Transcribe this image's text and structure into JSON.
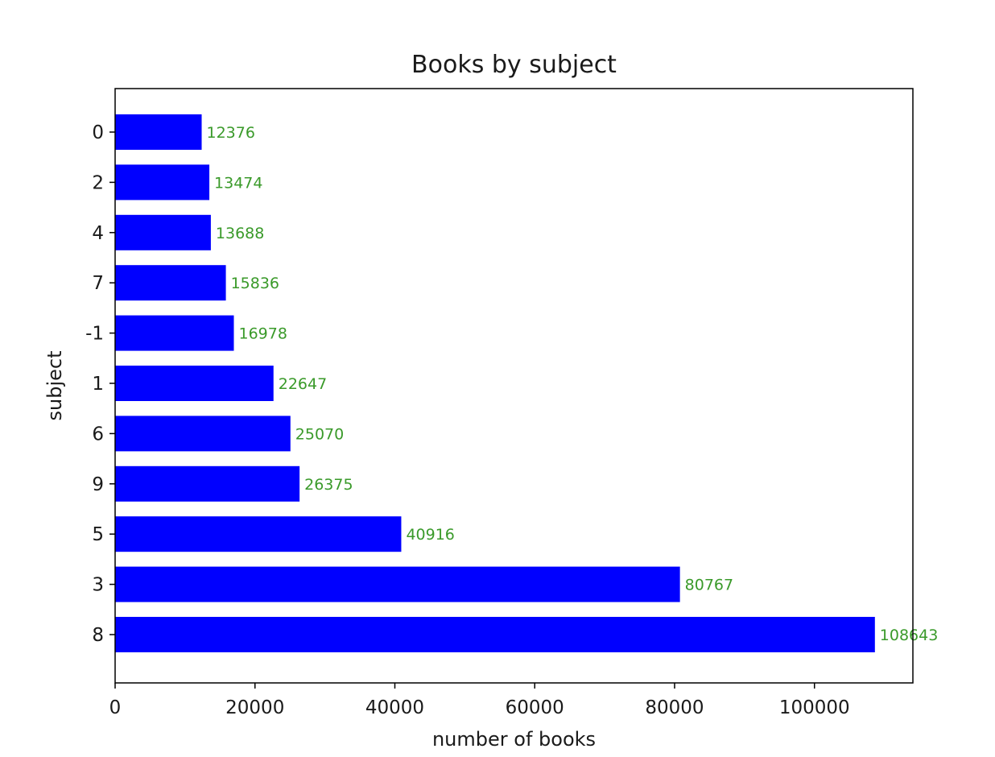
{
  "chart_data": {
    "type": "bar",
    "orientation": "horizontal",
    "title": "Books by subject",
    "xlabel": "number of books",
    "ylabel": "subject",
    "categories": [
      "0",
      "2",
      "4",
      "7",
      "-1",
      "1",
      "6",
      "9",
      "5",
      "3",
      "8"
    ],
    "values": [
      12376,
      13474,
      13688,
      15836,
      16978,
      22647,
      25070,
      26375,
      40916,
      80767,
      108643
    ],
    "data_labels": [
      "12376",
      "13474",
      "13688",
      "15836",
      "16978",
      "22647",
      "25070",
      "26375",
      "40916",
      "80767",
      "108643"
    ],
    "xlim": [
      0,
      114075
    ],
    "xticks": [
      0,
      20000,
      40000,
      60000,
      80000,
      100000
    ],
    "xtick_labels": [
      "0",
      "20000",
      "40000",
      "60000",
      "80000",
      "100000"
    ],
    "grid": false,
    "legend": "none",
    "bar_color": "#0000ff",
    "label_color": "#3a9a2a"
  }
}
